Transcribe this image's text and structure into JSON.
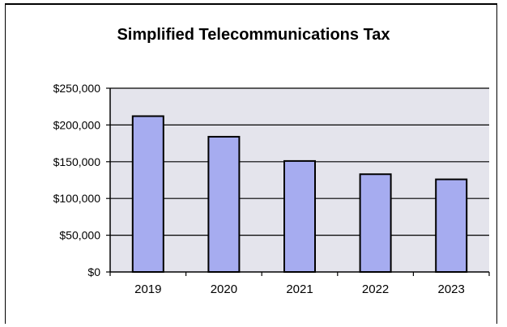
{
  "chart_data": {
    "type": "bar",
    "title": "Simplified Telecommunications Tax",
    "xlabel": "",
    "ylabel": "",
    "categories": [
      "2019",
      "2020",
      "2021",
      "2022",
      "2023"
    ],
    "values": [
      212000,
      184000,
      151000,
      133000,
      126000
    ],
    "ylim": [
      0,
      250000
    ],
    "yticks": [
      0,
      50000,
      100000,
      150000,
      200000,
      250000
    ],
    "ytick_labels": [
      "$0",
      "$50,000",
      "$100,000",
      "$150,000",
      "$200,000",
      "$250,000"
    ],
    "grid": true,
    "legend": "none",
    "colors": {
      "bar_fill": "#a6acf0",
      "plot_bg": "#e4e4ec",
      "bar_stroke": "#000000"
    }
  }
}
